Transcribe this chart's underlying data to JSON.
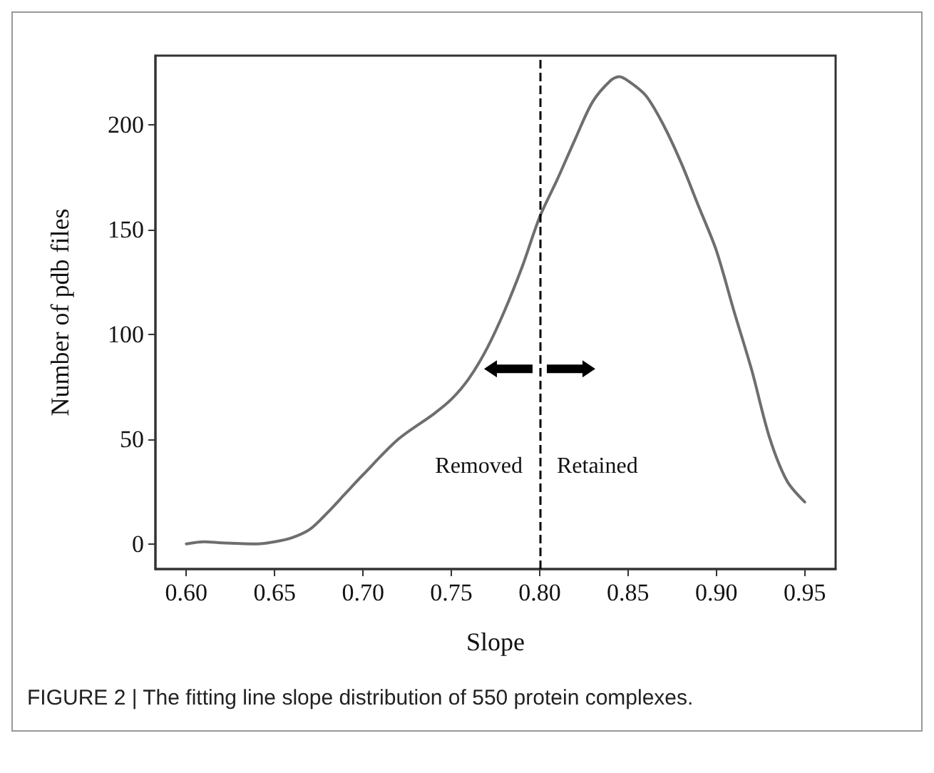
{
  "chart_data": {
    "type": "line",
    "xlabel": "Slope",
    "ylabel": "Number of pdb files",
    "x": [
      0.6,
      0.61,
      0.62,
      0.64,
      0.65,
      0.66,
      0.67,
      0.68,
      0.69,
      0.7,
      0.72,
      0.74,
      0.75,
      0.76,
      0.77,
      0.78,
      0.79,
      0.8,
      0.81,
      0.82,
      0.83,
      0.84,
      0.845,
      0.85,
      0.86,
      0.87,
      0.88,
      0.89,
      0.9,
      0.91,
      0.92,
      0.93,
      0.94,
      0.95
    ],
    "series": [
      {
        "color": "#6e6e6e",
        "values": [
          0,
          1,
          0.5,
          0,
          1,
          3,
          7,
          15,
          24,
          33,
          50,
          62,
          69,
          79,
          93,
          111,
          132,
          156,
          174,
          193,
          211,
          221,
          223,
          221,
          214,
          200,
          182,
          161,
          140,
          111,
          83,
          51,
          30,
          20
        ]
      }
    ],
    "xlim": [
      0.5825,
      0.9675
    ],
    "ylim": [
      -12,
      233
    ],
    "xticks": [
      {
        "value": 0.6,
        "label": "0.60"
      },
      {
        "value": 0.65,
        "label": "0.65"
      },
      {
        "value": 0.7,
        "label": "0.70"
      },
      {
        "value": 0.75,
        "label": "0.75"
      },
      {
        "value": 0.8,
        "label": "0.80"
      },
      {
        "value": 0.85,
        "label": "0.85"
      },
      {
        "value": 0.9,
        "label": "0.90"
      },
      {
        "value": 0.95,
        "label": "0.95"
      }
    ],
    "yticks": [
      0,
      50,
      100,
      150,
      200
    ],
    "grid": false,
    "marker": "none",
    "line_style": "solid",
    "ref_lines": [
      {
        "axis": "x",
        "value": 0.8,
        "line_style": "dashed",
        "color": "#000000"
      }
    ],
    "annotations": [
      "Removed",
      "Retained",
      "FIGURE 2 | The fitting line slope distribution of 550 protein complexes."
    ]
  }
}
